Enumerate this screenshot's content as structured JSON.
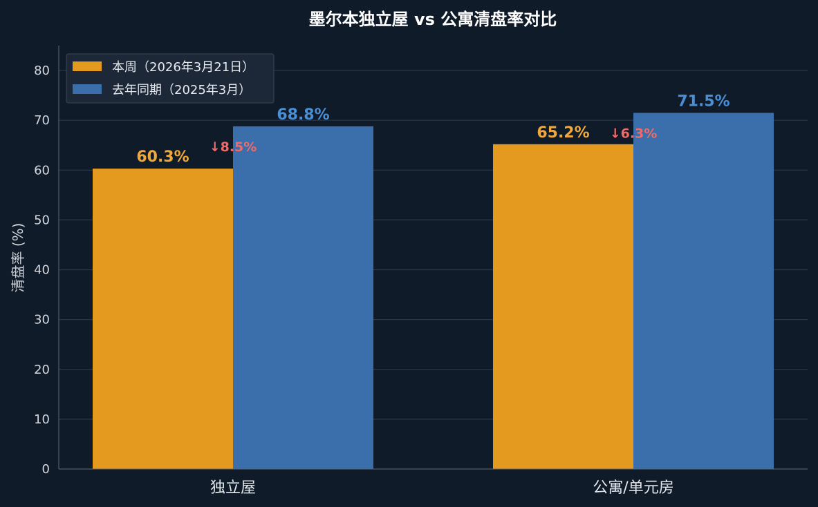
{
  "chart_data": {
    "type": "bar",
    "title": "墨尔本独立屋 vs 公寓清盘率对比",
    "xlabel": "",
    "ylabel": "清盘率 (%)",
    "ylim": [
      0,
      85
    ],
    "yticks": [
      0,
      10,
      20,
      30,
      40,
      50,
      60,
      70,
      80
    ],
    "grid": true,
    "legend_position": "top-left",
    "categories": [
      "独立屋",
      "公寓/单元房"
    ],
    "series": [
      {
        "name": "本周（2026年3月21日）",
        "values": [
          60.3,
          65.2
        ],
        "labels": [
          "60.3%",
          "65.2%"
        ],
        "color": "#e39a1f",
        "label_color": "#f0a83a"
      },
      {
        "name": "去年同期（2025年3月）",
        "values": [
          68.8,
          71.5
        ],
        "labels": [
          "68.8%",
          "71.5%"
        ],
        "color": "#3a6fab",
        "label_color": "#4a8fd6"
      }
    ],
    "annotations": [
      {
        "category": "独立屋",
        "text": "↓8.5%",
        "color": "#f06a68"
      },
      {
        "category": "公寓/单元房",
        "text": "↓6.3%",
        "color": "#f06a68"
      }
    ]
  },
  "theme": {
    "background": "#101b29",
    "grid_color": "#2b3847",
    "axis_color": "#5f6b79"
  }
}
